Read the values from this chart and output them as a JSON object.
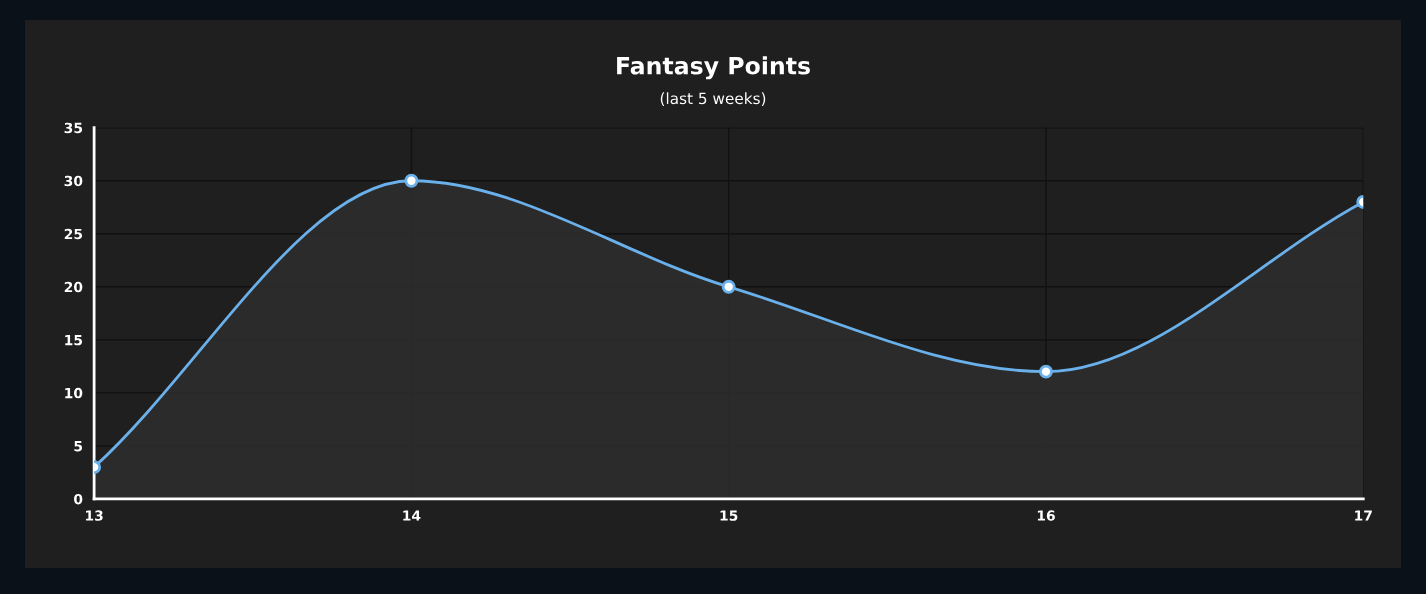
{
  "chart_data": {
    "type": "area",
    "title": "Fantasy Points",
    "subtitle": "(last 5 weeks)",
    "x": [
      13,
      14,
      15,
      16,
      17
    ],
    "series": [
      {
        "color": "#6ab0ea",
        "values": [
          3,
          30,
          20,
          12,
          28
        ]
      }
    ],
    "xlim": [
      13,
      17
    ],
    "xticks": [
      13,
      14,
      15,
      16,
      17
    ],
    "ylim": [
      0,
      35
    ],
    "yticks": [
      0,
      5,
      10,
      15,
      20,
      25,
      30,
      35
    ],
    "grid": true,
    "marker": "circle",
    "line_style": "solid"
  }
}
